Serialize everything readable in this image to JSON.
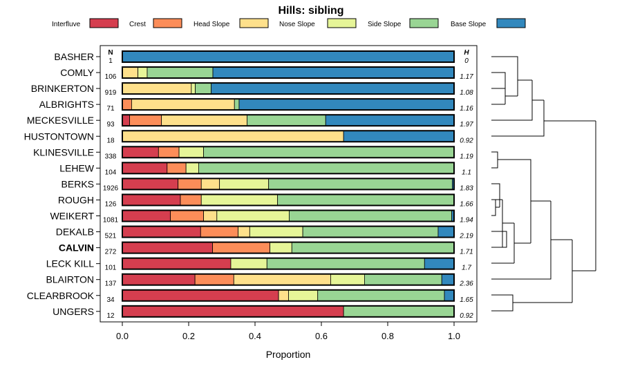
{
  "chart_data": {
    "type": "bar",
    "stacked": true,
    "orientation": "horizontal",
    "title": "Hills: sibling",
    "xlabel": "Proportion",
    "xlim": [
      0,
      1
    ],
    "xticks": [
      "0.0",
      "0.2",
      "0.4",
      "0.6",
      "0.8",
      "1.0"
    ],
    "n_header": "N",
    "h_header": "H",
    "highlight": "CALVIN",
    "legend": [
      {
        "name": "Interfluve",
        "color": "#D53E4F"
      },
      {
        "name": "Crest",
        "color": "#FC8D59"
      },
      {
        "name": "Head Slope",
        "color": "#FEE08B"
      },
      {
        "name": "Nose Slope",
        "color": "#E6F598"
      },
      {
        "name": "Side Slope",
        "color": "#99D594"
      },
      {
        "name": "Base Slope",
        "color": "#3288BD"
      }
    ],
    "rows": [
      {
        "name": "BASHER",
        "n": "1",
        "h": "0",
        "values": [
          0,
          0,
          0,
          0,
          0,
          1.0
        ]
      },
      {
        "name": "COMLY",
        "n": "106",
        "h": "1.17",
        "values": [
          0,
          0,
          0.047,
          0.028,
          0.198,
          0.727
        ]
      },
      {
        "name": "BRINKERTON",
        "n": "919",
        "h": "1.08",
        "values": [
          0,
          0,
          0.208,
          0.012,
          0.048,
          0.732
        ]
      },
      {
        "name": "ALBRIGHTS",
        "n": "71",
        "h": "1.16",
        "values": [
          0,
          0.028,
          0.31,
          0,
          0.014,
          0.648
        ]
      },
      {
        "name": "MECKESVILLE",
        "n": "93",
        "h": "1.97",
        "values": [
          0.022,
          0.096,
          0.258,
          0,
          0.237,
          0.387
        ]
      },
      {
        "name": "HUSTONTOWN",
        "n": "18",
        "h": "0.92",
        "values": [
          0,
          0,
          0.667,
          0,
          0,
          0.333
        ]
      },
      {
        "name": "KLINESVILLE",
        "n": "338",
        "h": "1.19",
        "values": [
          0.109,
          0.062,
          0,
          0.074,
          0.755,
          0
        ]
      },
      {
        "name": "LEHEW",
        "n": "104",
        "h": "1.1",
        "values": [
          0.135,
          0.057,
          0,
          0.038,
          0.77,
          0
        ]
      },
      {
        "name": "BERKS",
        "n": "1926",
        "h": "1.83",
        "values": [
          0.168,
          0.07,
          0.055,
          0.148,
          0.554,
          0.005
        ]
      },
      {
        "name": "ROUGH",
        "n": "126",
        "h": "1.66",
        "values": [
          0.175,
          0.063,
          0,
          0.23,
          0.532,
          0
        ]
      },
      {
        "name": "WEIKERT",
        "n": "1081",
        "h": "1.94",
        "values": [
          0.145,
          0.1,
          0.04,
          0.218,
          0.49,
          0.007
        ]
      },
      {
        "name": "DEKALB",
        "n": "521",
        "h": "2.19",
        "values": [
          0.236,
          0.113,
          0.035,
          0.16,
          0.408,
          0.048
        ]
      },
      {
        "name": "CALVIN",
        "n": "272",
        "h": "1.71",
        "values": [
          0.272,
          0.173,
          0,
          0.066,
          0.489,
          0
        ]
      },
      {
        "name": "LECK KILL",
        "n": "101",
        "h": "1.7",
        "values": [
          0.327,
          0,
          0,
          0.109,
          0.475,
          0.089
        ]
      },
      {
        "name": "BLAIRTON",
        "n": "137",
        "h": "2.36",
        "values": [
          0.219,
          0.117,
          0.292,
          0.102,
          0.233,
          0.037
        ]
      },
      {
        "name": "CLEARBROOK",
        "n": "34",
        "h": "1.65",
        "values": [
          0.471,
          0,
          0.03,
          0.088,
          0.382,
          0.029
        ]
      },
      {
        "name": "UNGERS",
        "n": "12",
        "h": "0.92",
        "values": [
          0.667,
          0,
          0,
          0,
          0.333,
          0
        ]
      }
    ]
  }
}
